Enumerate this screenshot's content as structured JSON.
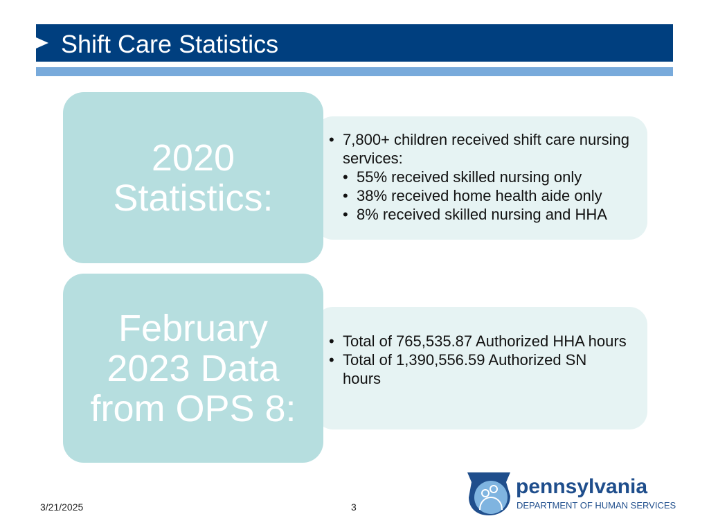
{
  "header": {
    "title": "Shift Care Statistics"
  },
  "sections": [
    {
      "heading": "2020 Statistics:",
      "bullets": [
        {
          "text": "7,800+ children received shift care nursing services:",
          "sub": [
            "55% received skilled nursing only",
            "38% received home health aide only",
            "8% received skilled nursing and HHA"
          ]
        }
      ]
    },
    {
      "heading": "February 2023 Data from OPS 8:",
      "bullets": [
        {
          "text": "Total of 765,535.87 Authorized HHA hours"
        },
        {
          "text": "Total of 1,390,556.59 Authorized SN hours"
        }
      ]
    }
  ],
  "footer": {
    "date": "3/21/2025",
    "page": "3",
    "logo_name": "pennsylvania",
    "logo_sub": "DEPARTMENT OF HUMAN SERVICES"
  },
  "colors": {
    "header": "#003f7f",
    "strip": "#78aadb",
    "heading_box": "#b6dedf",
    "content_box": "#e6f3f3"
  }
}
